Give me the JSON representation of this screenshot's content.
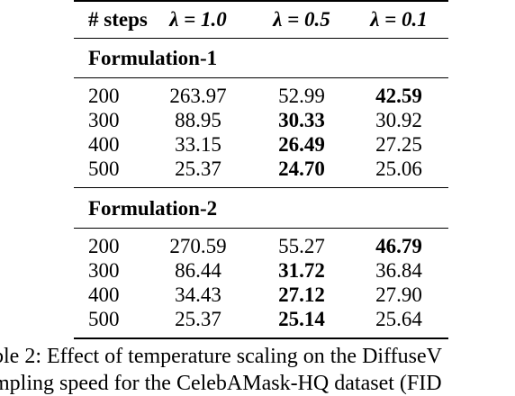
{
  "table": {
    "headers": [
      "# steps",
      "λ = 1.0",
      "λ = 0.5",
      "λ = 0.1"
    ],
    "sections": [
      {
        "title": "Formulation-1",
        "rows": [
          {
            "steps": "200",
            "v1": "263.97",
            "v2": "52.99",
            "v3": "42.59",
            "bold": 3
          },
          {
            "steps": "300",
            "v1": "88.95",
            "v2": "30.33",
            "v3": "30.92",
            "bold": 2
          },
          {
            "steps": "400",
            "v1": "33.15",
            "v2": "26.49",
            "v3": "27.25",
            "bold": 2
          },
          {
            "steps": "500",
            "v1": "25.37",
            "v2": "24.70",
            "v3": "25.06",
            "bold": 2
          }
        ]
      },
      {
        "title": "Formulation-2",
        "rows": [
          {
            "steps": "200",
            "v1": "270.59",
            "v2": "55.27",
            "v3": "46.79",
            "bold": 3
          },
          {
            "steps": "300",
            "v1": "86.44",
            "v2": "31.72",
            "v3": "36.84",
            "bold": 2
          },
          {
            "steps": "400",
            "v1": "34.43",
            "v2": "27.12",
            "v3": "27.90",
            "bold": 2
          },
          {
            "steps": "500",
            "v1": "25.37",
            "v2": "25.14",
            "v3": "25.64",
            "bold": 2
          }
        ]
      }
    ]
  },
  "caption": {
    "line1": "ble 2: Effect of temperature scaling on the DiffuseV",
    "line2": "mpling speed for the CelebAMask-HQ dataset (FID"
  }
}
